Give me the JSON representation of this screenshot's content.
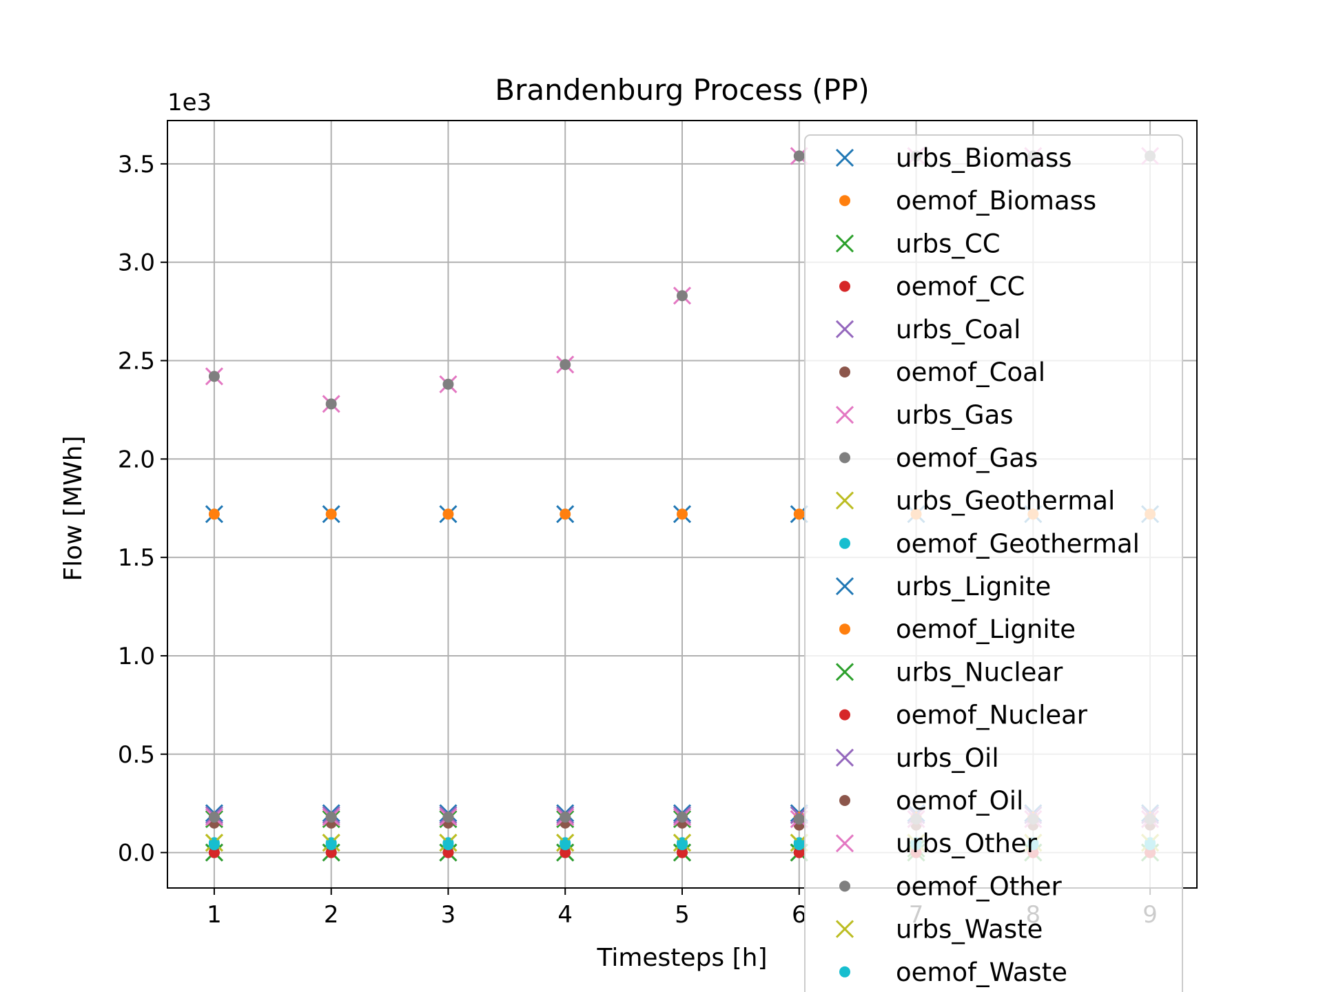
{
  "chart_data": {
    "type": "scatter",
    "title": "Brandenburg Process (PP)",
    "xlabel": "Timesteps [h]",
    "ylabel": "Flow [MWh]",
    "y_offset_text": "1e3",
    "x_ticks": [
      1,
      2,
      3,
      4,
      5,
      6,
      7,
      8,
      9
    ],
    "y_ticks": [
      "0.0",
      "0.5",
      "1.0",
      "1.5",
      "2.0",
      "2.5",
      "3.0",
      "3.5"
    ],
    "xlim": [
      0.6,
      9.4
    ],
    "ylim": [
      -0.18,
      3.72
    ],
    "grid": true,
    "legend_position": "upper right",
    "x": [
      1,
      2,
      3,
      4,
      5,
      6,
      7,
      8,
      9
    ],
    "series": [
      {
        "name": "urbs_Biomass",
        "marker": "x",
        "color": "#1f77b4",
        "values": [
          1.72,
          1.72,
          1.72,
          1.72,
          1.72,
          1.72,
          1.72,
          1.72,
          1.72
        ]
      },
      {
        "name": "oemof_Biomass",
        "marker": "dot",
        "color": "#ff7f0e",
        "values": [
          1.72,
          1.72,
          1.72,
          1.72,
          1.72,
          1.72,
          1.72,
          1.72,
          1.72
        ]
      },
      {
        "name": "urbs_CC",
        "marker": "x",
        "color": "#2ca02c",
        "values": [
          0.17,
          0.17,
          0.17,
          0.17,
          0.17,
          0.0,
          0.02,
          0.0,
          0.0
        ]
      },
      {
        "name": "oemof_CC",
        "marker": "dot",
        "color": "#d62728",
        "values": [
          0.17,
          0.17,
          0.17,
          0.17,
          0.17,
          0.0,
          0.0,
          0.0,
          0.0
        ]
      },
      {
        "name": "urbs_Coal",
        "marker": "x",
        "color": "#9467bd",
        "values": [
          0.0,
          0.0,
          0.0,
          0.0,
          0.0,
          0.0,
          0.0,
          0.0,
          0.0
        ]
      },
      {
        "name": "oemof_Coal",
        "marker": "dot",
        "color": "#8c564b",
        "values": [
          0.0,
          0.0,
          0.0,
          0.0,
          0.0,
          0.14,
          0.14,
          0.14,
          0.14
        ]
      },
      {
        "name": "urbs_Gas",
        "marker": "x",
        "color": "#e377c2",
        "values": [
          2.42,
          2.28,
          2.38,
          2.48,
          2.83,
          3.54,
          3.54,
          3.54,
          3.54
        ]
      },
      {
        "name": "oemof_Gas",
        "marker": "dot",
        "color": "#7f7f7f",
        "values": [
          2.42,
          2.28,
          2.38,
          2.48,
          2.83,
          3.54,
          3.54,
          3.54,
          3.54
        ]
      },
      {
        "name": "urbs_Geothermal",
        "marker": "x",
        "color": "#bcbd22",
        "values": [
          0.05,
          0.05,
          0.05,
          0.05,
          0.05,
          0.05,
          0.05,
          0.05,
          0.05
        ]
      },
      {
        "name": "oemof_Geothermal",
        "marker": "dot",
        "color": "#17becf",
        "values": [
          0.05,
          0.05,
          0.05,
          0.05,
          0.05,
          0.05,
          0.05,
          0.05,
          0.05
        ]
      },
      {
        "name": "urbs_Lignite",
        "marker": "x",
        "color": "#1f77b4",
        "values": [
          0.2,
          0.2,
          0.2,
          0.2,
          0.2,
          0.2,
          0.2,
          0.2,
          0.2
        ]
      },
      {
        "name": "oemof_Lignite",
        "marker": "dot",
        "color": "#ff7f0e",
        "values": [
          0.18,
          0.18,
          0.18,
          0.18,
          0.18,
          0.18,
          0.18,
          0.18,
          0.18
        ]
      },
      {
        "name": "urbs_Nuclear",
        "marker": "x",
        "color": "#2ca02c",
        "values": [
          0.0,
          0.0,
          0.0,
          0.0,
          0.0,
          0.0,
          0.0,
          0.0,
          0.0
        ]
      },
      {
        "name": "oemof_Nuclear",
        "marker": "dot",
        "color": "#d62728",
        "values": [
          0.0,
          0.0,
          0.0,
          0.0,
          0.0,
          0.0,
          0.0,
          0.0,
          0.0
        ]
      },
      {
        "name": "urbs_Oil",
        "marker": "x",
        "color": "#9467bd",
        "values": [
          0.19,
          0.19,
          0.19,
          0.19,
          0.19,
          0.19,
          0.19,
          0.19,
          0.19
        ]
      },
      {
        "name": "oemof_Oil",
        "marker": "dot",
        "color": "#8c564b",
        "values": [
          0.15,
          0.15,
          0.15,
          0.15,
          0.15,
          0.15,
          0.15,
          0.15,
          0.15
        ]
      },
      {
        "name": "urbs_Other",
        "marker": "x",
        "color": "#e377c2",
        "values": [
          0.18,
          0.18,
          0.18,
          0.18,
          0.18,
          0.17,
          0.17,
          0.17,
          0.17
        ]
      },
      {
        "name": "oemof_Other",
        "marker": "dot",
        "color": "#7f7f7f",
        "values": [
          0.18,
          0.18,
          0.18,
          0.18,
          0.18,
          0.17,
          0.17,
          0.17,
          0.17
        ]
      },
      {
        "name": "urbs_Waste",
        "marker": "x",
        "color": "#bcbd22",
        "values": [
          0.05,
          0.05,
          0.05,
          0.05,
          0.05,
          0.05,
          0.05,
          0.05,
          0.05
        ]
      },
      {
        "name": "oemof_Waste",
        "marker": "dot",
        "color": "#17becf",
        "values": [
          0.04,
          0.04,
          0.04,
          0.04,
          0.04,
          0.04,
          0.04,
          0.04,
          0.04
        ]
      }
    ]
  }
}
